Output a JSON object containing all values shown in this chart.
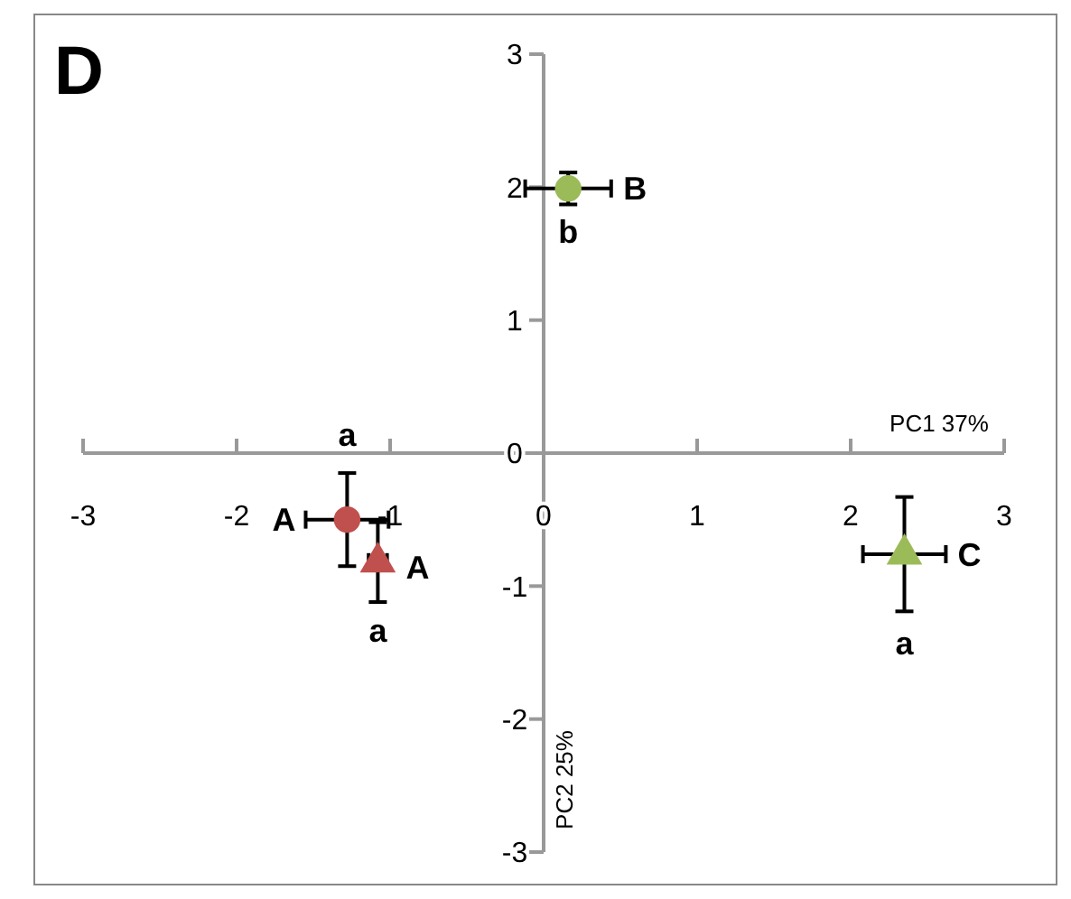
{
  "chart_data": {
    "type": "scatter",
    "title": "D",
    "xlabel": "PC1 37%",
    "ylabel": "PC2 25%",
    "xlim": [
      -3,
      3
    ],
    "ylim": [
      -3,
      3
    ],
    "xticks": [
      -3,
      -2,
      -1,
      0,
      1,
      2,
      3
    ],
    "yticks": [
      -3,
      -2,
      -1,
      0,
      1,
      2,
      3
    ],
    "grid": false,
    "series": [
      {
        "color": "#c0504d",
        "marker": "circle",
        "x": [
          -1.28
        ],
        "values": [
          -0.5
        ],
        "errors": [
          0.35
        ],
        "xerrors": [
          0.27
        ]
      },
      {
        "color": "#c0504d",
        "marker": "triangle",
        "x": [
          -1.08
        ],
        "values": [
          -0.82
        ],
        "errors": [
          0.3
        ],
        "xerrors": [
          0.06
        ]
      },
      {
        "color": "#9bbb59",
        "marker": "circle",
        "x": [
          0.16
        ],
        "values": [
          1.99
        ],
        "errors": [
          0.12
        ],
        "xerrors": [
          0.28
        ]
      },
      {
        "color": "#9bbb59",
        "marker": "triangle",
        "x": [
          2.35
        ],
        "values": [
          -0.76
        ],
        "errors": [
          0.43
        ],
        "xerrors": [
          0.27
        ]
      }
    ],
    "annotations": [
      {
        "text": "A",
        "x": -1.28,
        "y": -0.5
      },
      {
        "text": "a",
        "x": -1.28,
        "y": -0.5
      },
      {
        "text": "A",
        "x": -1.08,
        "y": -0.82
      },
      {
        "text": "a",
        "x": -1.08,
        "y": -0.82
      },
      {
        "text": "B",
        "x": 0.16,
        "y": 1.99
      },
      {
        "text": "b",
        "x": 0.16,
        "y": 1.99
      },
      {
        "text": "C",
        "x": 2.35,
        "y": -0.76
      },
      {
        "text": "a",
        "x": 2.35,
        "y": -0.76
      }
    ]
  }
}
